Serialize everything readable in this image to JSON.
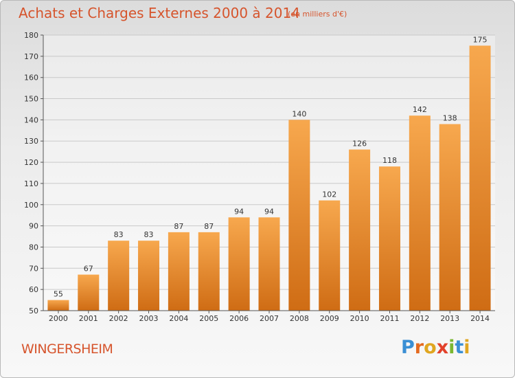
{
  "header": {
    "title": "Achats et Charges Externes 2000 à 2014",
    "subtitle": "(en milliers d'€)"
  },
  "footer": {
    "commune": "WINGERSHEIM",
    "logo": "Proxiti"
  },
  "colors": {
    "title": "#d6542c",
    "bar_light": "#f7a84e",
    "bar_dark": "#cf6c14"
  },
  "chart_data": {
    "type": "bar",
    "title": "Achats et Charges Externes 2000 à 2014",
    "subtitle": "(en milliers d'€)",
    "categories": [
      "2000",
      "2001",
      "2002",
      "2003",
      "2004",
      "2005",
      "2006",
      "2007",
      "2008",
      "2009",
      "2010",
      "2011",
      "2012",
      "2013",
      "2014"
    ],
    "values": [
      55,
      67,
      83,
      83,
      87,
      87,
      94,
      94,
      140,
      102,
      126,
      118,
      142,
      138,
      175
    ],
    "ylim": [
      50,
      180
    ],
    "yticks": [
      50,
      60,
      70,
      80,
      90,
      100,
      110,
      120,
      130,
      140,
      150,
      160,
      170,
      180
    ],
    "grid": true,
    "xlabel": "",
    "ylabel": ""
  }
}
